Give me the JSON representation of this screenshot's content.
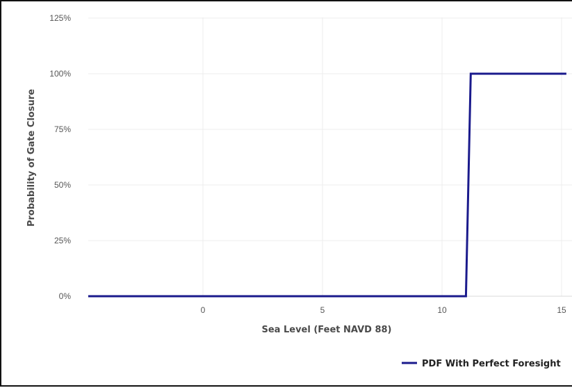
{
  "chart_data": {
    "type": "line",
    "xlabel": "Sea Level (Feet NAVD 88)",
    "ylabel": "Probability of Gate Closure",
    "x_ticks": [
      "0",
      "5",
      "10",
      "15"
    ],
    "y_ticks": [
      "0%",
      "25%",
      "50%",
      "75%",
      "100%",
      "125%"
    ],
    "xlim": [
      -5,
      15.2
    ],
    "ylim": [
      0,
      125
    ],
    "grid": true,
    "legend_position": "bottom-right",
    "series": [
      {
        "name": "PDF With Perfect Foresight",
        "color": "#1a1a8c",
        "step": true,
        "x": [
          -4.8,
          11.0,
          11.2,
          15.2
        ],
        "y": [
          0,
          0,
          100,
          100
        ]
      }
    ]
  }
}
